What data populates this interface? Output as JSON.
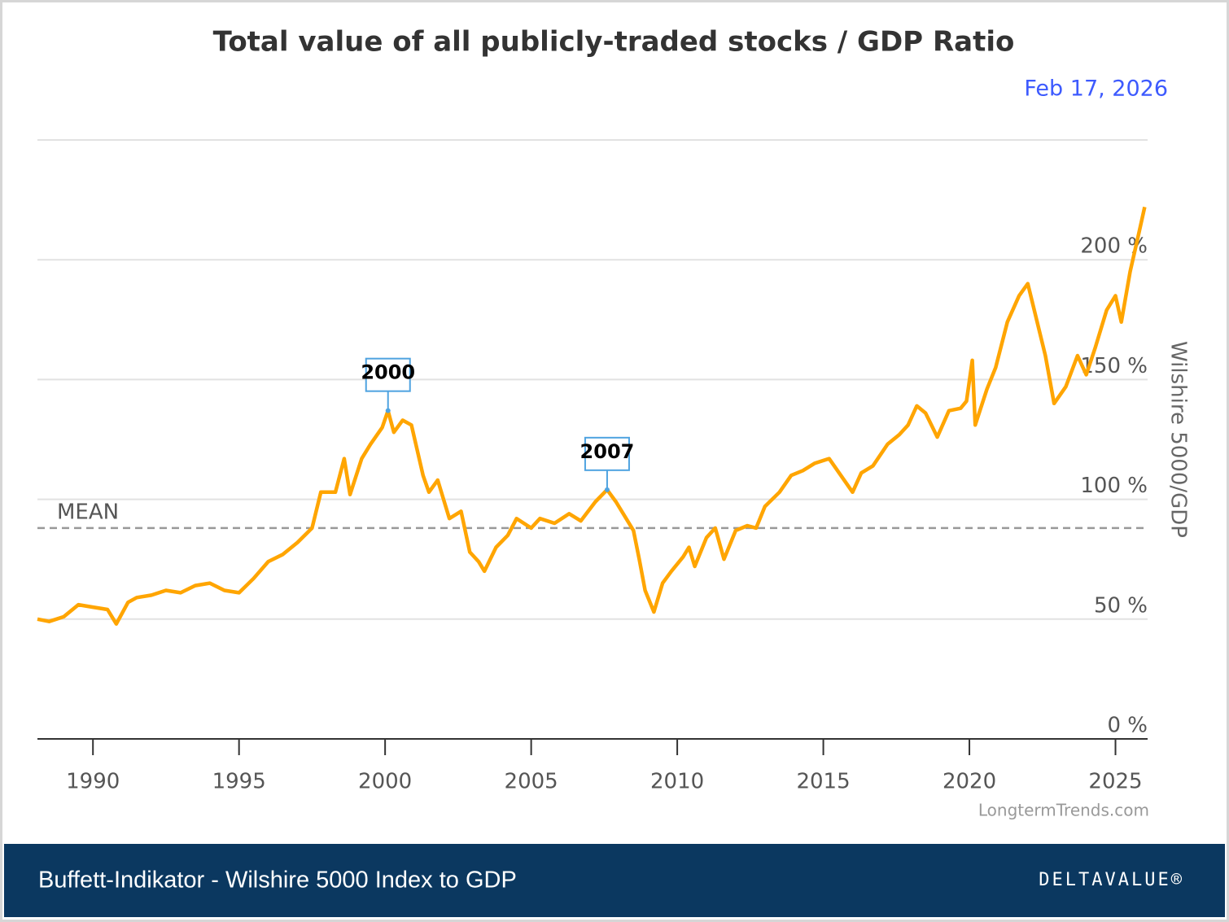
{
  "chart_data": {
    "type": "line",
    "title": "Total value of all publicly-traded stocks / GDP Ratio",
    "subtitle": "Feb 17, 2026",
    "y_axis_label": "Wilshire 5000/GDP",
    "credit": "LongtermTrends.com",
    "footer": "Buffett-Indikator - Wilshire 5000 Index to GDP",
    "logo": "DELTAVALUE®",
    "xlim": [
      1988.1,
      2026.1
    ],
    "xticks": [
      1990,
      1995,
      2000,
      2005,
      2010,
      2015,
      2020,
      2025
    ],
    "ylim": [
      0,
      250
    ],
    "yticks": [
      {
        "value": 0,
        "label": "0 %"
      },
      {
        "value": 50,
        "label": "50 %"
      },
      {
        "value": 100,
        "label": "100 %"
      },
      {
        "value": 150,
        "label": "150 %"
      },
      {
        "value": 200,
        "label": "200 %"
      }
    ],
    "grid": true,
    "mean": {
      "label": "MEAN",
      "value": 88
    },
    "annotations": [
      {
        "x": 2000.1,
        "y": 137,
        "text": "2000"
      },
      {
        "x": 2007.6,
        "y": 104,
        "text": "2007"
      }
    ],
    "series": [
      {
        "name": "Wilshire 5000/GDP",
        "color": "#ffa500",
        "x": [
          1988.1,
          1988.5,
          1989,
          1989.5,
          1990,
          1990.5,
          1990.8,
          1991.2,
          1991.5,
          1992,
          1992.5,
          1993,
          1993.5,
          1994,
          1994.5,
          1995,
          1995.5,
          1996,
          1996.5,
          1997,
          1997.5,
          1997.8,
          1998.3,
          1998.6,
          1998.8,
          1999.2,
          1999.5,
          1999.9,
          2000.1,
          2000.3,
          2000.6,
          2000.9,
          2001.3,
          2001.5,
          2001.8,
          2002.2,
          2002.6,
          2002.9,
          2003.2,
          2003.4,
          2003.8,
          2004.2,
          2004.5,
          2005,
          2005.3,
          2005.8,
          2006.3,
          2006.7,
          2007.2,
          2007.6,
          2007.9,
          2008.2,
          2008.5,
          2008.7,
          2008.9,
          2009.2,
          2009.5,
          2009.8,
          2010.2,
          2010.4,
          2010.6,
          2011,
          2011.3,
          2011.6,
          2012,
          2012.4,
          2012.7,
          2013,
          2013.5,
          2013.9,
          2014.3,
          2014.7,
          2015.2,
          2015.6,
          2016,
          2016.3,
          2016.7,
          2017.2,
          2017.6,
          2017.9,
          2018.2,
          2018.5,
          2018.9,
          2019.3,
          2019.7,
          2019.9,
          2020.1,
          2020.2,
          2020.6,
          2020.9,
          2021.3,
          2021.7,
          2022,
          2022.3,
          2022.6,
          2022.9,
          2023.3,
          2023.7,
          2024,
          2024.3,
          2024.7,
          2025,
          2025.2,
          2025.5,
          2025.8,
          2026
        ],
        "values": [
          50,
          49,
          51,
          56,
          55,
          54,
          48,
          57,
          59,
          60,
          62,
          61,
          64,
          65,
          62,
          61,
          67,
          74,
          77,
          82,
          88,
          103,
          103,
          117,
          102,
          117,
          123,
          130,
          137,
          128,
          133,
          131,
          110,
          103,
          108,
          92,
          95,
          78,
          74,
          70,
          80,
          85,
          92,
          88,
          92,
          90,
          94,
          91,
          99,
          104,
          99,
          93,
          87,
          75,
          62,
          53,
          65,
          70,
          76,
          80,
          72,
          84,
          88,
          75,
          87,
          89,
          88,
          97,
          103,
          110,
          112,
          115,
          117,
          110,
          103,
          111,
          114,
          123,
          127,
          131,
          139,
          136,
          126,
          137,
          138,
          141,
          158,
          131,
          146,
          155,
          174,
          185,
          190,
          175,
          160,
          140,
          147,
          160,
          152,
          163,
          179,
          185,
          174,
          195,
          211,
          222
        ]
      }
    ]
  }
}
